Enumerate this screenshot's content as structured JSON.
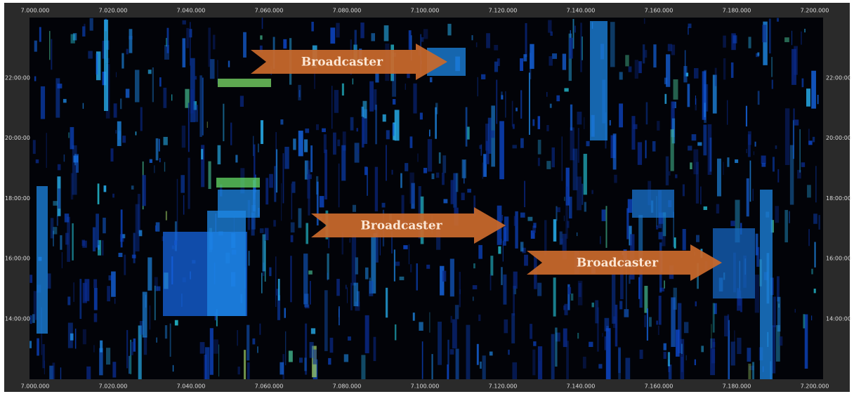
{
  "x_axis": {
    "top_ticks": [
      "7.000.000",
      "7.020.000",
      "7.040.000",
      "7.060.000",
      "7.080.000",
      "7.100.000",
      "7.120.000",
      "7.140.000",
      "7.160.000",
      "7.180.000",
      "7.200.000"
    ],
    "bottom_ticks": [
      "7.000.000",
      "7.020.000",
      "7.040.000",
      "7.060.000",
      "7.080.000",
      "7.100.000",
      "7.120.000",
      "7.140.000",
      "7.160.000",
      "7.180.000",
      "7.200.000"
    ]
  },
  "y_axis": {
    "left_ticks": [
      "22:00:00",
      "20:00:00",
      "18:00:00",
      "16:00:00",
      "14:00:00"
    ],
    "right_ticks": [
      "22:00:00",
      "20:00:00",
      "18:00:00",
      "16:00:00",
      "14:00:00"
    ]
  },
  "annotations": [
    "Broadcaster",
    "Broadcaster",
    "Broadcaster"
  ]
}
